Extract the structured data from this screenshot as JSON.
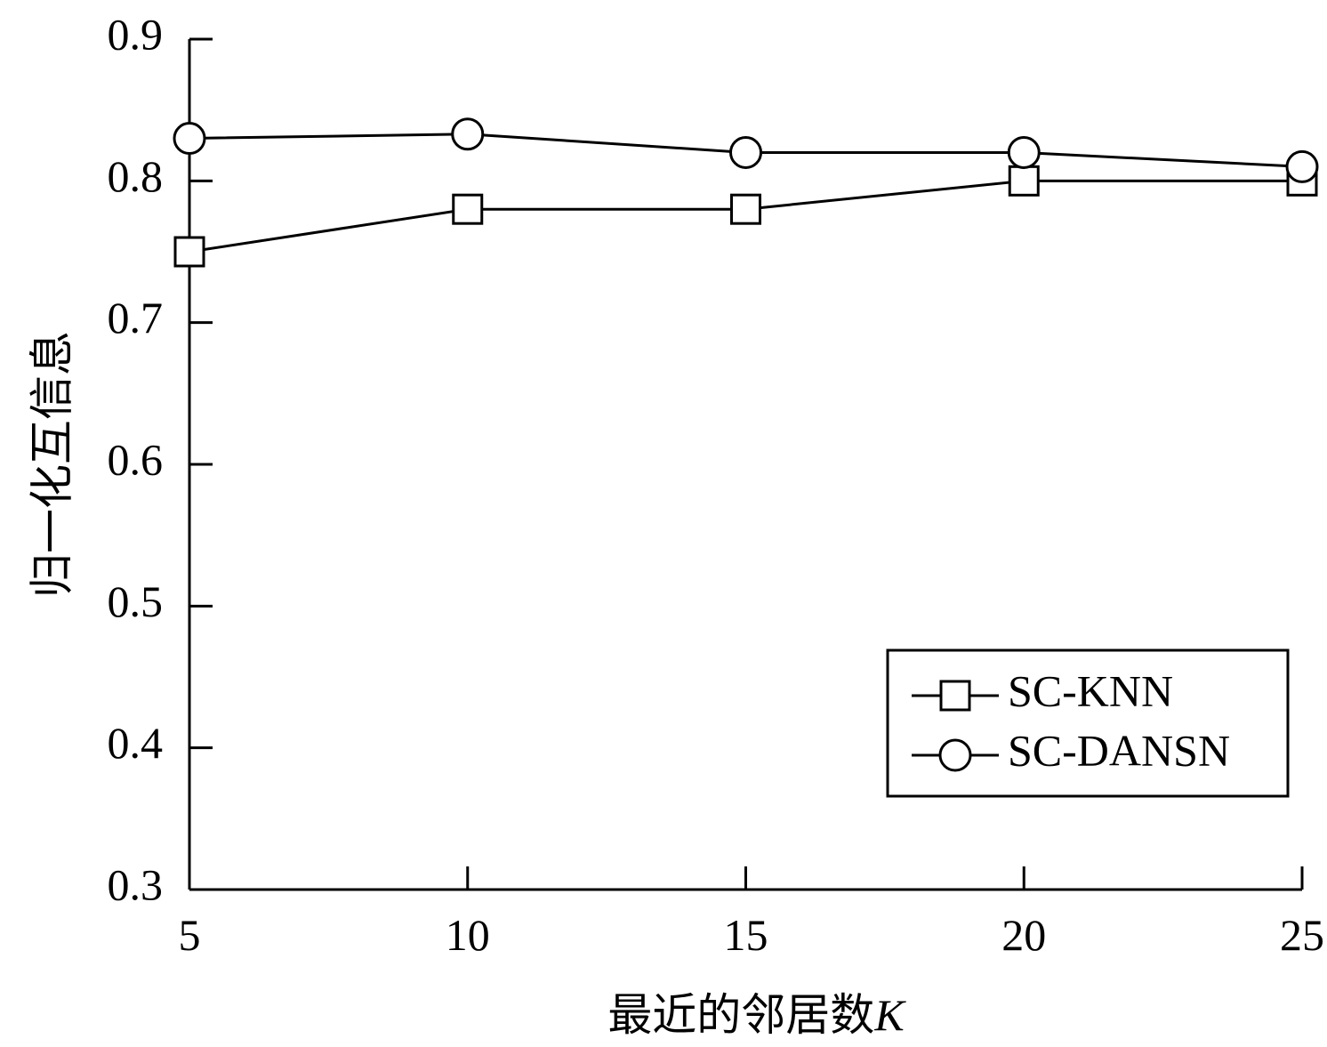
{
  "chart_data": {
    "type": "line",
    "title": "",
    "xlabel_main": "最近的邻居数",
    "xlabel_var": "K",
    "ylabel": "归一化互信息",
    "x": [
      5,
      10,
      15,
      20,
      25
    ],
    "x_ticks": [
      "5",
      "10",
      "15",
      "20",
      "25"
    ],
    "xlim": [
      5,
      25
    ],
    "y_ticks": [
      "0.3",
      "0.4",
      "0.5",
      "0.6",
      "0.7",
      "0.8",
      "0.9"
    ],
    "ylim": [
      0.3,
      0.9
    ],
    "grid": false,
    "legend_position": "lower-right",
    "series": [
      {
        "name": "SC-KNN",
        "marker": "square",
        "values": [
          0.75,
          0.78,
          0.78,
          0.8,
          0.8
        ]
      },
      {
        "name": "SC-DANSN",
        "marker": "circle",
        "values": [
          0.83,
          0.833,
          0.82,
          0.82,
          0.81
        ]
      }
    ]
  }
}
